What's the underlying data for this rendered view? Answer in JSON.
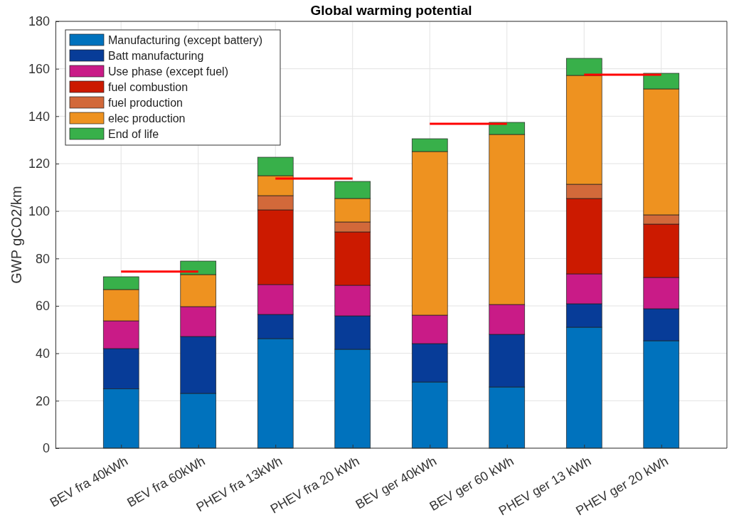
{
  "chart_data": {
    "type": "bar",
    "title": "Global warming potential",
    "ylabel": "GWP gCO2/km",
    "stacked": true,
    "grid": true,
    "legend": "top left",
    "categories": [
      "BEV fra 40kWh",
      "BEV fra 60kWh",
      "PHEV fra 13kWh",
      "PHEV fra 20 kWh",
      "BEV ger 40kWh",
      "BEV ger 60 kWh",
      "PHEV ger 13 kWh",
      "PHEV ger 20 kWh"
    ],
    "ylim": [
      0,
      180
    ],
    "yticks": [
      0,
      20,
      40,
      60,
      80,
      100,
      120,
      140,
      160,
      180
    ],
    "series": [
      {
        "name": "Manufacturing (except battery)",
        "color": "#0072bd",
        "values": [
          25,
          23.1,
          46.2,
          41.7,
          27.9,
          25.8,
          51,
          45.3
        ]
      },
      {
        "name": "Batt manufacturing",
        "color": "#073c98",
        "values": [
          17,
          24,
          10.2,
          14.1,
          16.2,
          22.2,
          9.9,
          13.5
        ]
      },
      {
        "name": "Use phase (except fuel)",
        "color": "#c91b87",
        "values": [
          11.7,
          12.6,
          12.6,
          12.9,
          12,
          12.6,
          12.6,
          13.2
        ]
      },
      {
        "name": "fuel combustion",
        "color": "#cc1a00",
        "values": [
          0,
          0,
          31.5,
          22.5,
          0,
          0,
          31.8,
          22.5
        ]
      },
      {
        "name": "fuel production",
        "color": "#d2693a",
        "values": [
          0,
          0,
          6,
          4.2,
          0,
          0,
          6,
          3.9
        ]
      },
      {
        "name": "elec production",
        "color": "#ee9220",
        "values": [
          13.2,
          13.5,
          8.4,
          9.9,
          69,
          71.7,
          45.9,
          53.1
        ]
      },
      {
        "name": "End of life",
        "color": "#38b04a",
        "values": [
          5.4,
          5.7,
          7.8,
          7.2,
          5.4,
          5.1,
          7.2,
          6.6
        ]
      },
      {
        "type": "line",
        "color": "#ff0000",
        "marker": "none",
        "values": [
          74.5,
          74.5,
          null,
          null,
          null,
          null,
          null,
          null
        ]
      },
      {
        "type": "line",
        "color": "#ff0000",
        "marker": "none",
        "values": [
          null,
          null,
          113.7,
          113.7,
          null,
          null,
          null,
          null
        ]
      },
      {
        "type": "line",
        "color": "#ff0000",
        "marker": "none",
        "values": [
          null,
          null,
          null,
          null,
          136.8,
          136.8,
          null,
          null
        ]
      },
      {
        "type": "line",
        "color": "#ff0000",
        "marker": "none",
        "values": [
          null,
          null,
          null,
          null,
          null,
          null,
          157.5,
          157.5
        ]
      }
    ]
  }
}
